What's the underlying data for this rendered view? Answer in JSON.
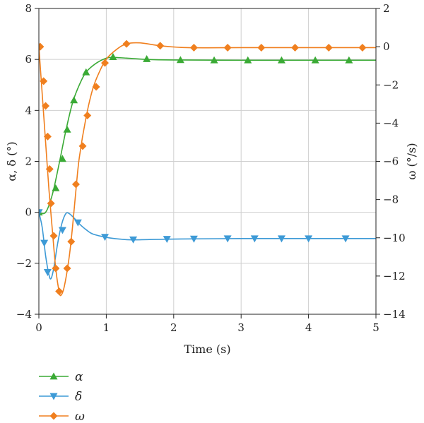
{
  "chart_data": {
    "type": "line",
    "xlabel": "Time (s)",
    "ylabel_left": "α, δ (°)",
    "ylabel_right": "ω (°/s)",
    "xlim": [
      0,
      5
    ],
    "ylim_left": [
      -4,
      8
    ],
    "ylim_right": [
      -14,
      2
    ],
    "x_ticks": [
      "0",
      "1",
      "2",
      "3",
      "4",
      "5"
    ],
    "y_left_ticks": [
      "−4",
      "−2",
      "0",
      "2",
      "4",
      "6",
      "8"
    ],
    "y_right_ticks": [
      "−14",
      "−12",
      "−10",
      "−8",
      "−6",
      "−4",
      "−2",
      "0",
      "2"
    ],
    "grid": true,
    "legend_position": "below-left",
    "series": [
      {
        "name": "α",
        "axis": "left",
        "color": "#3aaa35",
        "marker": "triangle-up",
        "line": [
          [
            0,
            0
          ],
          [
            0.1,
            0
          ],
          [
            0.2,
            0.7
          ],
          [
            0.3,
            1.9
          ],
          [
            0.4,
            3.2
          ],
          [
            0.5,
            4.3
          ],
          [
            0.6,
            5.0
          ],
          [
            0.7,
            5.5
          ],
          [
            0.85,
            5.85
          ],
          [
            1.0,
            6.05
          ],
          [
            1.1,
            6.08
          ],
          [
            1.3,
            6.05
          ],
          [
            1.6,
            6.0
          ],
          [
            2.0,
            5.98
          ],
          [
            3.0,
            5.97
          ],
          [
            4.0,
            5.97
          ],
          [
            5.0,
            5.97
          ]
        ],
        "markers": [
          [
            0,
            0
          ],
          [
            0.25,
            0.95
          ],
          [
            0.35,
            2.1
          ],
          [
            0.42,
            3.25
          ],
          [
            0.52,
            4.4
          ],
          [
            0.7,
            5.5
          ],
          [
            1.1,
            6.1
          ],
          [
            1.6,
            6.02
          ],
          [
            2.1,
            5.98
          ],
          [
            2.6,
            5.97
          ],
          [
            3.1,
            5.97
          ],
          [
            3.6,
            5.97
          ],
          [
            4.1,
            5.97
          ],
          [
            4.6,
            5.97
          ]
        ]
      },
      {
        "name": "δ",
        "axis": "left",
        "color": "#3d9ad6",
        "marker": "triangle-down",
        "line": [
          [
            0,
            0
          ],
          [
            0.05,
            -0.6
          ],
          [
            0.1,
            -1.7
          ],
          [
            0.15,
            -2.45
          ],
          [
            0.18,
            -2.6
          ],
          [
            0.22,
            -2.2
          ],
          [
            0.28,
            -1.2
          ],
          [
            0.34,
            -0.45
          ],
          [
            0.4,
            -0.05
          ],
          [
            0.45,
            -0.05
          ],
          [
            0.52,
            -0.22
          ],
          [
            0.6,
            -0.45
          ],
          [
            0.7,
            -0.68
          ],
          [
            0.8,
            -0.85
          ],
          [
            1.0,
            -0.98
          ],
          [
            1.2,
            -1.05
          ],
          [
            1.4,
            -1.08
          ],
          [
            2.0,
            -1.05
          ],
          [
            3.0,
            -1.03
          ],
          [
            4.0,
            -1.03
          ],
          [
            5.0,
            -1.03
          ]
        ],
        "markers": [
          [
            0,
            0
          ],
          [
            0.08,
            -1.2
          ],
          [
            0.13,
            -2.35
          ],
          [
            0.35,
            -0.7
          ],
          [
            0.58,
            -0.4
          ],
          [
            0.98,
            -0.97
          ],
          [
            1.4,
            -1.07
          ],
          [
            1.9,
            -1.05
          ],
          [
            2.3,
            -1.04
          ],
          [
            2.8,
            -1.03
          ],
          [
            3.2,
            -1.03
          ],
          [
            3.6,
            -1.03
          ],
          [
            4.0,
            -1.03
          ],
          [
            4.55,
            -1.03
          ]
        ]
      },
      {
        "name": "ω",
        "axis": "right",
        "color": "#f07f1e",
        "marker": "diamond",
        "line": [
          [
            0,
            0
          ],
          [
            0.05,
            -2.5
          ],
          [
            0.1,
            -5.0
          ],
          [
            0.15,
            -7.5
          ],
          [
            0.2,
            -9.6
          ],
          [
            0.25,
            -11.6
          ],
          [
            0.3,
            -12.8
          ],
          [
            0.33,
            -13.0
          ],
          [
            0.38,
            -12.5
          ],
          [
            0.45,
            -11.0
          ],
          [
            0.5,
            -9.4
          ],
          [
            0.55,
            -7.5
          ],
          [
            0.6,
            -5.8
          ],
          [
            0.7,
            -3.7
          ],
          [
            0.8,
            -2.2
          ],
          [
            0.9,
            -1.3
          ],
          [
            1.0,
            -0.65
          ],
          [
            1.15,
            -0.15
          ],
          [
            1.3,
            0.15
          ],
          [
            1.5,
            0.2
          ],
          [
            1.8,
            0.05
          ],
          [
            2.2,
            -0.05
          ],
          [
            3.0,
            -0.05
          ],
          [
            4.0,
            -0.05
          ],
          [
            5.0,
            -0.05
          ]
        ],
        "markers": [
          [
            0.02,
            0
          ],
          [
            0.07,
            -1.8
          ],
          [
            0.1,
            -3.1
          ],
          [
            0.13,
            -4.7
          ],
          [
            0.16,
            -6.4
          ],
          [
            0.18,
            -8.2
          ],
          [
            0.22,
            -9.9
          ],
          [
            0.25,
            -11.6
          ],
          [
            0.3,
            -12.8
          ],
          [
            0.42,
            -11.6
          ],
          [
            0.48,
            -10.2
          ],
          [
            0.55,
            -7.2
          ],
          [
            0.65,
            -5.2
          ],
          [
            0.72,
            -3.6
          ],
          [
            0.85,
            -2.1
          ],
          [
            0.98,
            -0.85
          ],
          [
            1.3,
            0.15
          ],
          [
            1.8,
            0.05
          ],
          [
            2.3,
            -0.05
          ],
          [
            2.8,
            -0.05
          ],
          [
            3.3,
            -0.05
          ],
          [
            3.8,
            -0.05
          ],
          [
            4.3,
            -0.05
          ],
          [
            4.8,
            -0.05
          ]
        ]
      }
    ]
  }
}
